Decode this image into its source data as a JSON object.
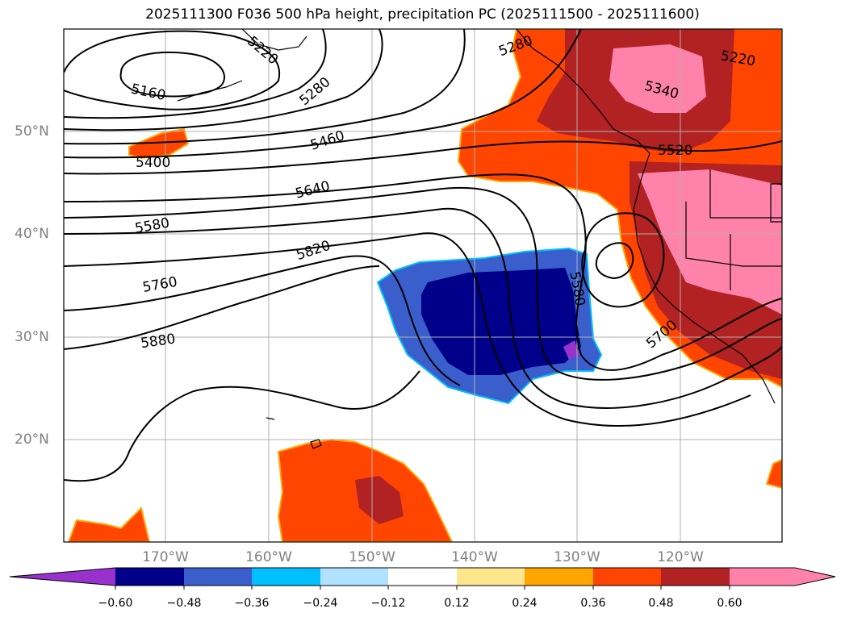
{
  "title": "2025111300 F036 500 hPa height, precipitation PC (2025111500 - 2025111600)",
  "lat_labels": [
    "50°N",
    "40°N",
    "30°N",
    "20°N"
  ],
  "lon_labels": [
    "170°W",
    "160°W",
    "150°W",
    "140°W",
    "130°W",
    "120°W"
  ],
  "contour_labels": [
    "5220",
    "5160",
    "5280",
    "5400",
    "5460",
    "5640",
    "5580",
    "5820",
    "5760",
    "5880",
    "5340",
    "5220",
    "5520",
    "5580",
    "5700",
    "5280"
  ],
  "colorbar": {
    "tick_labels": [
      "−0.60",
      "−0.48",
      "−0.36",
      "−0.24",
      "−0.12",
      "0.12",
      "0.24",
      "0.36",
      "0.48",
      "0.60"
    ],
    "colors": [
      "#9932cc",
      "#00008b",
      "#3a5fcd",
      "#00bfff",
      "#b0e2ff",
      "#ffffff",
      "#ffe68c",
      "#ffa500",
      "#ff4500",
      "#b22222",
      "#ff82ab"
    ]
  }
}
